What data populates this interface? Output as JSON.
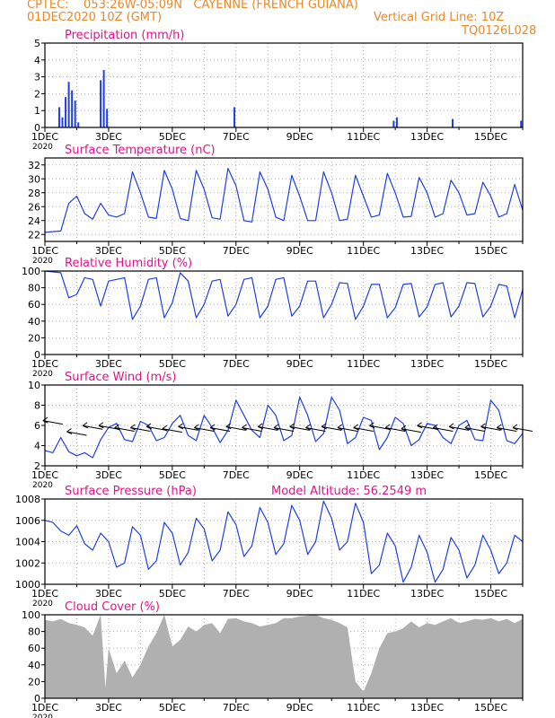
{
  "header": {
    "line1": "CPTEC:    053:26W-05:09N   CAYENNE (FRENCH GUIANA)",
    "line2": "01DEC2020 10Z (GMT)",
    "grid_note": "Vertical Grid Line: 10Z",
    "run_id": "TQ0126L028"
  },
  "colors": {
    "header": "#e8892a",
    "title": "#e0148a",
    "series": "#1f3fe6",
    "cloud": "#b0b0b0"
  },
  "x_axis": {
    "start_day": 1,
    "end_day": 16,
    "tick_labels": [
      "1DEC",
      "3DEC",
      "5DEC",
      "7DEC",
      "9DEC",
      "11DEC",
      "13DEC",
      "15DEC"
    ],
    "year_label": "2020"
  },
  "chart_data": [
    {
      "id": "precip",
      "type": "bar",
      "title": "Precipitation (mm/h)",
      "ylim": [
        0,
        5
      ],
      "yticks": [
        0,
        1,
        2,
        3,
        4,
        5
      ],
      "x": [
        1.45,
        1.55,
        1.65,
        1.75,
        1.85,
        1.95,
        2.05,
        2.75,
        2.85,
        2.95,
        6.95,
        11.95,
        12.05,
        13.8,
        15.95
      ],
      "values": [
        1.2,
        0.6,
        1.8,
        2.7,
        2.2,
        1.6,
        0.3,
        2.8,
        3.4,
        1.1,
        1.2,
        0.4,
        0.6,
        0.5,
        0.4
      ]
    },
    {
      "id": "temp",
      "type": "line",
      "title": "Surface Temperature (nC)",
      "ylim": [
        21,
        33
      ],
      "yticks": [
        22,
        24,
        26,
        28,
        30,
        32
      ],
      "x": [
        1.0,
        1.5,
        1.75,
        2.0,
        2.25,
        2.5,
        2.75,
        3.0,
        3.25,
        3.5,
        3.75,
        4.0,
        4.25,
        4.5,
        4.75,
        5.0,
        5.25,
        5.5,
        5.75,
        6.0,
        6.25,
        6.5,
        6.75,
        7.0,
        7.25,
        7.5,
        7.75,
        8.0,
        8.25,
        8.5,
        8.75,
        9.0,
        9.25,
        9.5,
        9.75,
        10.0,
        10.25,
        10.5,
        10.75,
        11.0,
        11.25,
        11.5,
        11.75,
        12.0,
        12.25,
        12.5,
        12.75,
        13.0,
        13.25,
        13.5,
        13.75,
        14.0,
        14.25,
        14.5,
        14.75,
        15.0,
        15.25,
        15.5,
        15.75,
        16.0
      ],
      "values": [
        22.3,
        22.5,
        26.5,
        27.5,
        25.0,
        24.2,
        26.5,
        24.8,
        24.5,
        25.0,
        31.0,
        28.0,
        24.5,
        24.3,
        31.2,
        28.5,
        24.3,
        24.0,
        31.2,
        28.5,
        24.4,
        24.2,
        31.5,
        29.0,
        24.0,
        23.8,
        31.0,
        28.5,
        24.5,
        24.0,
        30.5,
        27.5,
        24.0,
        24.0,
        31.0,
        28.0,
        24.0,
        24.2,
        30.5,
        27.5,
        24.5,
        24.8,
        30.8,
        28.0,
        24.5,
        24.6,
        30.2,
        28.0,
        24.5,
        25.0,
        29.8,
        28.0,
        24.8,
        25.0,
        29.5,
        27.5,
        24.5,
        25.0,
        29.2,
        25.5
      ]
    },
    {
      "id": "rh",
      "type": "line",
      "title": "Relative Humidity (%)",
      "ylim": [
        0,
        100
      ],
      "yticks": [
        0,
        20,
        40,
        60,
        80,
        100
      ],
      "x": [
        1.0,
        1.5,
        1.75,
        2.0,
        2.25,
        2.5,
        2.75,
        3.0,
        3.25,
        3.5,
        3.75,
        4.0,
        4.25,
        4.5,
        4.75,
        5.0,
        5.25,
        5.5,
        5.75,
        6.0,
        6.25,
        6.5,
        6.75,
        7.0,
        7.25,
        7.5,
        7.75,
        8.0,
        8.25,
        8.5,
        8.75,
        9.0,
        9.25,
        9.5,
        9.75,
        10.0,
        10.25,
        10.5,
        10.75,
        11.0,
        11.25,
        11.5,
        11.75,
        12.0,
        12.25,
        12.5,
        12.75,
        13.0,
        13.25,
        13.5,
        13.75,
        14.0,
        14.25,
        14.5,
        14.75,
        15.0,
        15.25,
        15.5,
        15.75,
        16.0
      ],
      "values": [
        100,
        98,
        68,
        72,
        92,
        90,
        58,
        88,
        90,
        92,
        42,
        58,
        90,
        92,
        44,
        62,
        98,
        88,
        44,
        60,
        88,
        90,
        46,
        60,
        90,
        92,
        44,
        58,
        90,
        92,
        46,
        58,
        88,
        88,
        44,
        60,
        86,
        85,
        42,
        58,
        84,
        84,
        44,
        56,
        84,
        85,
        45,
        57,
        84,
        86,
        45,
        58,
        86,
        85,
        45,
        58,
        84,
        82,
        44,
        78
      ]
    },
    {
      "id": "wind",
      "type": "line",
      "title": "Surface Wind (m/s)",
      "ylim": [
        2,
        10
      ],
      "yticks": [
        2,
        4,
        6,
        8,
        10
      ],
      "x": [
        1.0,
        1.25,
        1.5,
        1.75,
        2.0,
        2.25,
        2.5,
        2.75,
        3.0,
        3.25,
        3.5,
        3.75,
        4.0,
        4.25,
        4.5,
        4.75,
        5.0,
        5.25,
        5.5,
        5.75,
        6.0,
        6.25,
        6.5,
        6.75,
        7.0,
        7.25,
        7.5,
        7.75,
        8.0,
        8.25,
        8.5,
        8.75,
        9.0,
        9.25,
        9.5,
        9.75,
        10.0,
        10.25,
        10.5,
        10.75,
        11.0,
        11.25,
        11.5,
        11.75,
        12.0,
        12.25,
        12.5,
        12.75,
        13.0,
        13.25,
        13.5,
        13.75,
        14.0,
        14.25,
        14.5,
        14.75,
        15.0,
        15.25,
        15.5,
        15.75,
        16.0
      ],
      "values": [
        3.5,
        3.3,
        4.8,
        3.4,
        3.0,
        3.3,
        2.8,
        4.6,
        5.8,
        6.2,
        4.6,
        4.4,
        6.4,
        6.0,
        4.5,
        4.8,
        6.2,
        7.0,
        5.0,
        4.5,
        7.0,
        5.8,
        4.3,
        5.5,
        8.5,
        7.0,
        5.5,
        4.8,
        8.0,
        7.0,
        4.5,
        5.0,
        8.8,
        7.0,
        4.4,
        5.2,
        8.8,
        7.5,
        4.2,
        4.8,
        6.8,
        6.5,
        3.6,
        4.8,
        6.8,
        6.2,
        4.0,
        4.6,
        6.2,
        6.0,
        4.8,
        4.2,
        6.0,
        6.5,
        4.6,
        4.5,
        8.5,
        7.5,
        4.5,
        4.2,
        5.2
      ],
      "arrows": {
        "x": [
          1.25,
          2.0,
          2.5,
          3.0,
          3.5,
          4.0,
          4.5,
          5.0,
          5.5,
          6.0,
          6.5,
          7.0,
          7.5,
          8.0,
          8.5,
          9.0,
          9.5,
          10.0,
          10.5,
          11.0,
          11.5,
          12.0,
          12.5,
          13.0,
          13.5,
          14.0,
          14.5,
          15.0,
          15.5,
          16.0
        ],
        "y": [
          6.3,
          5.2,
          5.8,
          5.8,
          5.6,
          5.6,
          5.7,
          5.5,
          5.7,
          5.6,
          5.6,
          5.7,
          5.6,
          5.7,
          5.6,
          5.7,
          5.6,
          5.7,
          5.6,
          5.6,
          5.8,
          5.6,
          5.5,
          5.8,
          5.6,
          5.7,
          5.6,
          5.7,
          5.6,
          5.6
        ]
      }
    },
    {
      "id": "pres",
      "type": "line",
      "title": "Surface Pressure (hPa)",
      "annotation": "Model Altitude: 56.2549 m",
      "ylim": [
        1000,
        1008
      ],
      "yticks": [
        1000,
        1002,
        1004,
        1006,
        1008
      ],
      "x": [
        1.0,
        1.25,
        1.5,
        1.75,
        2.0,
        2.25,
        2.5,
        2.75,
        3.0,
        3.25,
        3.5,
        3.75,
        4.0,
        4.25,
        4.5,
        4.75,
        5.0,
        5.25,
        5.5,
        5.75,
        6.0,
        6.25,
        6.5,
        6.75,
        7.0,
        7.25,
        7.5,
        7.75,
        8.0,
        8.25,
        8.5,
        8.75,
        9.0,
        9.25,
        9.5,
        9.75,
        10.0,
        10.25,
        10.5,
        10.75,
        11.0,
        11.25,
        11.5,
        11.75,
        12.0,
        12.25,
        12.5,
        12.75,
        13.0,
        13.25,
        13.5,
        13.75,
        14.0,
        14.25,
        14.5,
        14.75,
        15.0,
        15.25,
        15.5,
        15.75,
        16.0
      ],
      "values": [
        1006.0,
        1005.8,
        1005.0,
        1004.6,
        1005.5,
        1003.8,
        1003.2,
        1004.8,
        1004.0,
        1001.6,
        1002.0,
        1005.4,
        1004.6,
        1001.4,
        1002.2,
        1005.8,
        1004.8,
        1001.8,
        1003.0,
        1006.2,
        1005.2,
        1002.2,
        1003.2,
        1006.8,
        1005.6,
        1002.6,
        1003.6,
        1007.2,
        1005.8,
        1002.8,
        1003.8,
        1007.4,
        1006.0,
        1002.8,
        1004.0,
        1007.8,
        1006.2,
        1003.2,
        1004.0,
        1007.6,
        1005.8,
        1001.0,
        1001.8,
        1004.8,
        1003.6,
        1000.2,
        1001.6,
        1004.6,
        1003.0,
        1000.2,
        1001.4,
        1004.4,
        1003.2,
        1000.6,
        1001.8,
        1004.6,
        1003.2,
        1001.0,
        1002.0,
        1004.6,
        1004.0
      ]
    },
    {
      "id": "cloud",
      "type": "area",
      "title": "Cloud Cover (%)",
      "ylim": [
        0,
        100
      ],
      "yticks": [
        0,
        20,
        40,
        60,
        80,
        100
      ],
      "x": [
        1.0,
        1.25,
        1.5,
        1.75,
        2.0,
        2.25,
        2.5,
        2.75,
        2.9,
        3.0,
        3.25,
        3.5,
        3.75,
        4.0,
        4.25,
        4.5,
        4.75,
        5.0,
        5.25,
        5.5,
        5.75,
        6.0,
        6.25,
        6.5,
        6.75,
        7.0,
        7.25,
        7.5,
        7.75,
        8.0,
        8.25,
        8.5,
        8.75,
        9.0,
        9.25,
        9.5,
        9.75,
        10.0,
        10.25,
        10.5,
        10.75,
        11.0,
        11.25,
        11.5,
        11.75,
        12.0,
        12.25,
        12.5,
        12.75,
        13.0,
        13.25,
        13.5,
        13.75,
        14.0,
        14.25,
        14.5,
        14.75,
        15.0,
        15.25,
        15.5,
        15.75,
        16.0
      ],
      "values": [
        94,
        92,
        95,
        90,
        88,
        85,
        75,
        100,
        12,
        60,
        30,
        45,
        25,
        40,
        62,
        78,
        100,
        62,
        70,
        86,
        80,
        88,
        90,
        78,
        95,
        96,
        92,
        90,
        86,
        88,
        90,
        96,
        96,
        98,
        99,
        100,
        96,
        94,
        90,
        85,
        20,
        8,
        30,
        60,
        78,
        80,
        84,
        92,
        85,
        90,
        88,
        92,
        96,
        90,
        92,
        95,
        94,
        96,
        92,
        95,
        90,
        95
      ]
    }
  ]
}
